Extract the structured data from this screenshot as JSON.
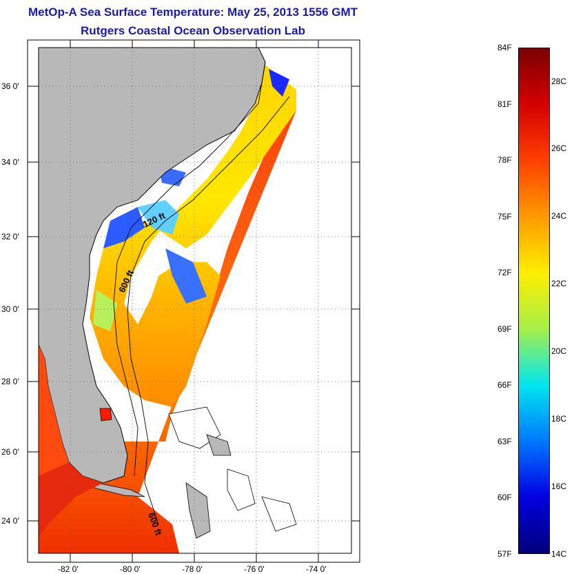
{
  "header": {
    "title": "MetOp-A Sea Surface Temperature:  May 25, 2013 1556 GMT",
    "subtitle": "Rutgers Coastal Ocean Observation Lab"
  },
  "map": {
    "lat_labels": [
      "36 0'",
      "34 0'",
      "32 0'",
      "30 0'",
      "28 0'",
      "26 0'",
      "24 0'"
    ],
    "lon_labels": [
      "-82 0'",
      "-80 0'",
      "-78 0'",
      "-76 0'",
      "-74 0'"
    ],
    "contour_labels": [
      "120 ft",
      "600 ft",
      "600 ft"
    ]
  },
  "colorbar": {
    "fahrenheit_labels": [
      "84F",
      "81F",
      "78F",
      "75F",
      "72F",
      "69F",
      "66F",
      "63F",
      "60F",
      "57F"
    ],
    "celsius_labels": [
      "28C",
      "26C",
      "24C",
      "22C",
      "20C",
      "18C",
      "16C",
      "14C"
    ],
    "colors": [
      "#7a0000",
      "#d40000",
      "#ff4000",
      "#ff9a00",
      "#ffee00",
      "#a6ef4a",
      "#00e6f0",
      "#0078ff",
      "#0000e0",
      "#00007a"
    ]
  }
}
